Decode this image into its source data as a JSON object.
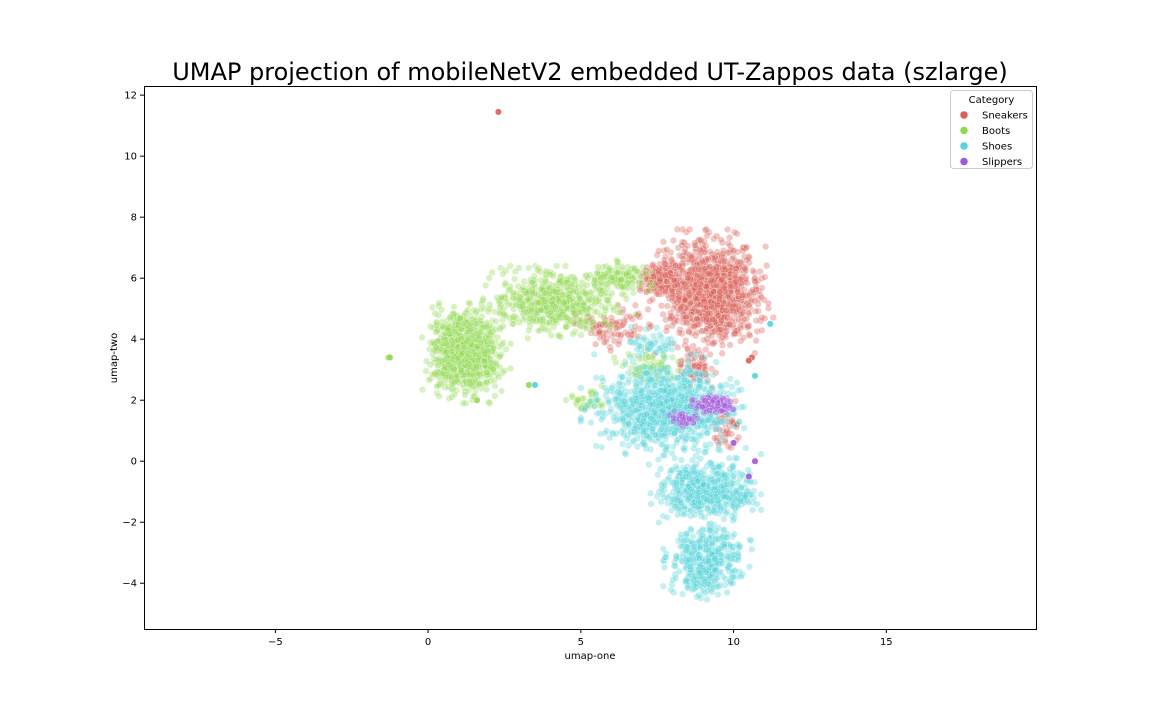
{
  "chart_data": {
    "type": "scatter",
    "title": "UMAP projection of mobileNetV2 embedded UT-Zappos data (szlarge)",
    "xlabel": "umap-one",
    "ylabel": "umap-two",
    "xlim": [
      -9.3,
      19.9
    ],
    "ylim": [
      -5.5,
      12.3
    ],
    "xticks": [
      -5,
      0,
      5,
      10,
      15
    ],
    "yticks": [
      -4,
      -2,
      0,
      2,
      4,
      6,
      8,
      10,
      12
    ],
    "xtick_labels": [
      "−5",
      "0",
      "5",
      "10",
      "15"
    ],
    "ytick_labels": [
      "−4",
      "−2",
      "0",
      "2",
      "4",
      "6",
      "8",
      "10",
      "12"
    ],
    "grid": false,
    "legend": {
      "title": "Category",
      "placement": "top-right",
      "entries": [
        "Sneakers",
        "Boots",
        "Shoes",
        "Slippers"
      ]
    },
    "series": [
      {
        "name": "Sneakers",
        "color": "#db5f57",
        "clusters": [
          {
            "x": [
              7.2,
              11.3
            ],
            "y": [
              3.5,
              7.6
            ],
            "n": 1100
          },
          {
            "x": [
              6.8,
              8.5
            ],
            "y": [
              5.3,
              6.6
            ],
            "n": 160
          },
          {
            "x": [
              4.5,
              7.5
            ],
            "y": [
              3.5,
              5.2
            ],
            "n": 90
          },
          {
            "x": [
              8.0,
              9.5
            ],
            "y": [
              2.4,
              3.6
            ],
            "n": 70
          },
          {
            "x": [
              9.3,
              10.3
            ],
            "y": [
              0.3,
              2.1
            ],
            "n": 45
          }
        ],
        "outliers": [
          [
            2.3,
            11.45
          ],
          [
            10.6,
            3.4
          ],
          [
            10.5,
            3.3
          ],
          [
            10.1,
            1.2
          ]
        ]
      },
      {
        "name": "Boots",
        "color": "#91d952",
        "clusters": [
          {
            "x": [
              -0.2,
              2.7
            ],
            "y": [
              1.9,
              5.2
            ],
            "n": 900
          },
          {
            "x": [
              1.5,
              6.8
            ],
            "y": [
              4.0,
              6.4
            ],
            "n": 550
          },
          {
            "x": [
              5.0,
              7.5
            ],
            "y": [
              5.5,
              6.6
            ],
            "n": 120
          },
          {
            "x": [
              6.0,
              8.5
            ],
            "y": [
              2.4,
              3.8
            ],
            "n": 70
          },
          {
            "x": [
              4.3,
              6.0
            ],
            "y": [
              1.5,
              2.6
            ],
            "n": 35
          }
        ],
        "outliers": [
          [
            -1.3,
            3.4
          ],
          [
            -1.25,
            3.4
          ],
          [
            3.3,
            2.5
          ],
          [
            1.6,
            2.0
          ]
        ]
      },
      {
        "name": "Shoes",
        "color": "#57d3db",
        "clusters": [
          {
            "x": [
              5.0,
              10.5
            ],
            "y": [
              0.1,
              3.5
            ],
            "n": 1000
          },
          {
            "x": [
              7.2,
              10.9
            ],
            "y": [
              -2.2,
              0.3
            ],
            "n": 500
          },
          {
            "x": [
              7.7,
              10.6
            ],
            "y": [
              -4.6,
              -2.0
            ],
            "n": 420
          },
          {
            "x": [
              6.2,
              8.5
            ],
            "y": [
              3.2,
              4.5
            ],
            "n": 50
          },
          {
            "x": [
              9.6,
              10.9
            ],
            "y": [
              -1.6,
              -0.7
            ],
            "n": 40
          }
        ],
        "outliers": [
          [
            11.2,
            4.5
          ],
          [
            3.5,
            2.5
          ],
          [
            10.7,
            2.8
          ]
        ]
      },
      {
        "name": "Slippers",
        "color": "#a157db",
        "clusters": [
          {
            "x": [
              8.6,
              10.1
            ],
            "y": [
              1.5,
              2.2
            ],
            "n": 140
          },
          {
            "x": [
              7.8,
              9.0
            ],
            "y": [
              1.1,
              1.7
            ],
            "n": 40
          }
        ],
        "outliers": [
          [
            10.5,
            -0.5
          ],
          [
            10.0,
            0.6
          ],
          [
            10.7,
            0.0
          ]
        ]
      }
    ]
  }
}
